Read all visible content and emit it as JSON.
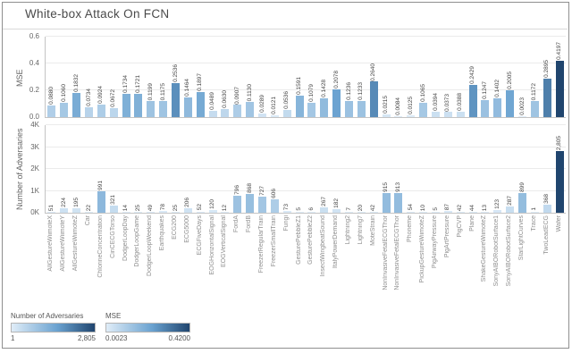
{
  "title": "White-box Attack On FCN",
  "top_chart": {
    "ylabel": "MSE",
    "yticks": [
      "0.6",
      "0.4",
      "0.2",
      "0.0"
    ],
    "ymax": 0.6
  },
  "bottom_chart": {
    "ylabel": "Number of Adversaries",
    "yticks": [
      "4K",
      "3K",
      "2K",
      "1K",
      "0K"
    ],
    "ymax": 4000
  },
  "legend": [
    {
      "title": "Number of Adversaries",
      "min": "1",
      "max": "2,805"
    },
    {
      "title": "MSE",
      "min": "0.0023",
      "max": "0.4200"
    }
  ],
  "colors": {
    "ramp_light": "#e0edf8",
    "ramp_mid": "#6aa2d0",
    "ramp_dark": "#20456e",
    "mse_domain": [
      0.0023,
      0.42
    ],
    "adversaries_domain": [
      1,
      2805
    ]
  },
  "chart_data": {
    "type": "bar",
    "title": "White-box Attack On FCN",
    "grid": true,
    "legend_position": "bottom-left",
    "categories": [
      "AllGestureWiimoteX",
      "AllGestureWiimoteY",
      "AllGestureWiimoteZ",
      "Car",
      "ChlorineConcentration",
      "CinCECGTorso",
      "DodgerLoopDay",
      "DodgerLoopGame",
      "DodgerLoopWeekend",
      "Earthquakes",
      "ECG200",
      "ECG5000",
      "ECGFiveDays",
      "EOGHorizontalSignal",
      "EOGVerticalSignal",
      "FordA",
      "FordB",
      "FreezerRegularTrain",
      "FreezerSmallTrain",
      "Fungi",
      "GesturePebbleZ1",
      "GesturePebbleZ2",
      "InsectWingbeatSound",
      "ItalyPowerDemand",
      "Lightning2",
      "Lightning7",
      "MoteStrain",
      "NonInvasiveFetalECGThor",
      "NonInvasiveFetalECGThor",
      "Phoneme",
      "PickupGestureWiimoteZ",
      "PigAirwayPressure",
      "PigArtPressure",
      "PigCVP",
      "Plane",
      "ShakeGestureWiimoteZ",
      "SonyAIBORobotSurface1",
      "SonyAIBORobotSurface2",
      "StarLightCurves",
      "Trace",
      "TwoLeadECG",
      "Wafer"
    ],
    "series": [
      {
        "name": "MSE",
        "axis": "top",
        "ylim": [
          0,
          0.6
        ],
        "values": [
          0.088,
          0.106,
          0.1832,
          0.0734,
          0.0924,
          0.0672,
          0.1734,
          0.1721,
          0.1199,
          0.1175,
          0.2536,
          0.1464,
          0.1897,
          0.0489,
          0.063,
          0.0907,
          0.113,
          0.0289,
          0.0121,
          0.0536,
          0.1591,
          0.1079,
          0.1428,
          0.2078,
          0.1236,
          0.1233,
          0.264,
          0.0215,
          0.0084,
          0.0125,
          0.1065,
          0.0394,
          0.0373,
          0.0388,
          0.2429,
          0.1247,
          0.1402,
          0.2005,
          0.0023,
          0.1172,
          0.2895,
          0.4197
        ]
      },
      {
        "name": "Number of Adversaries",
        "axis": "bottom",
        "ylim": [
          0,
          4000
        ],
        "values": [
          51,
          224,
          195,
          22,
          991,
          321,
          14,
          25,
          49,
          78,
          25,
          206,
          52,
          120,
          12,
          796,
          868,
          727,
          606,
          73,
          5,
          6,
          267,
          182,
          7,
          20,
          42,
          915,
          913,
          54,
          10,
          5,
          87,
          42,
          44,
          13,
          123,
          287,
          899,
          1,
          368,
          2805
        ]
      }
    ]
  }
}
